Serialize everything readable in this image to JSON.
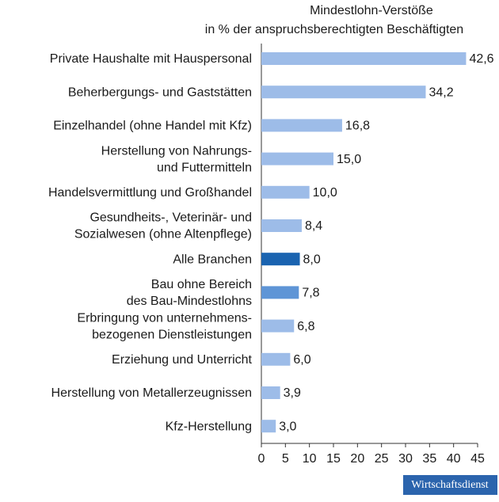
{
  "chart_data": {
    "type": "bar",
    "orientation": "horizontal",
    "title": [
      "Mindestlohn-Verstöße",
      "in % der anspruchsberechtigten Beschäftigten"
    ],
    "categories": [
      [
        "Private Haushalte mit Hauspersonal"
      ],
      [
        "Beherbergungs- und Gaststätten"
      ],
      [
        "Einzelhandel (ohne Handel mit Kfz)"
      ],
      [
        "Herstellung von Nahrungs-",
        "und Futtermitteln"
      ],
      [
        "Handelsvermittlung und Großhandel"
      ],
      [
        "Gesundheits-, Veterinär- und",
        "Sozialwesen (ohne Altenpflege)"
      ],
      [
        "Alle Branchen"
      ],
      [
        "Bau ohne Bereich",
        "des Bau-Mindestlohns"
      ],
      [
        "Erbringung von unternehmens-",
        "bezogenen Dienstleistungen"
      ],
      [
        "Erziehung und Unterricht"
      ],
      [
        "Herstellung von Metallerzeugnissen"
      ],
      [
        "Kfz-Herstellung"
      ]
    ],
    "values": [
      42.6,
      34.2,
      16.8,
      15.0,
      10.0,
      8.4,
      8.0,
      7.8,
      6.8,
      6.0,
      3.9,
      3.0
    ],
    "value_labels": [
      "42,6",
      "34,2",
      "16,8",
      "15,0",
      "10,0",
      "8,4",
      "8,0",
      "7,8",
      "6,8",
      "6,0",
      "3,9",
      "3,0"
    ],
    "colors": [
      "#9dbce8",
      "#9dbce8",
      "#9dbce8",
      "#9dbce8",
      "#9dbce8",
      "#9dbce8",
      "#1a63b0",
      "#5e95d6",
      "#9dbce8",
      "#9dbce8",
      "#9dbce8",
      "#9dbce8"
    ],
    "xlim": [
      0,
      45
    ],
    "xticks": [
      0,
      5,
      10,
      15,
      20,
      25,
      30,
      35,
      40,
      45
    ],
    "source_logo": "Wirtschaftsdienst"
  }
}
